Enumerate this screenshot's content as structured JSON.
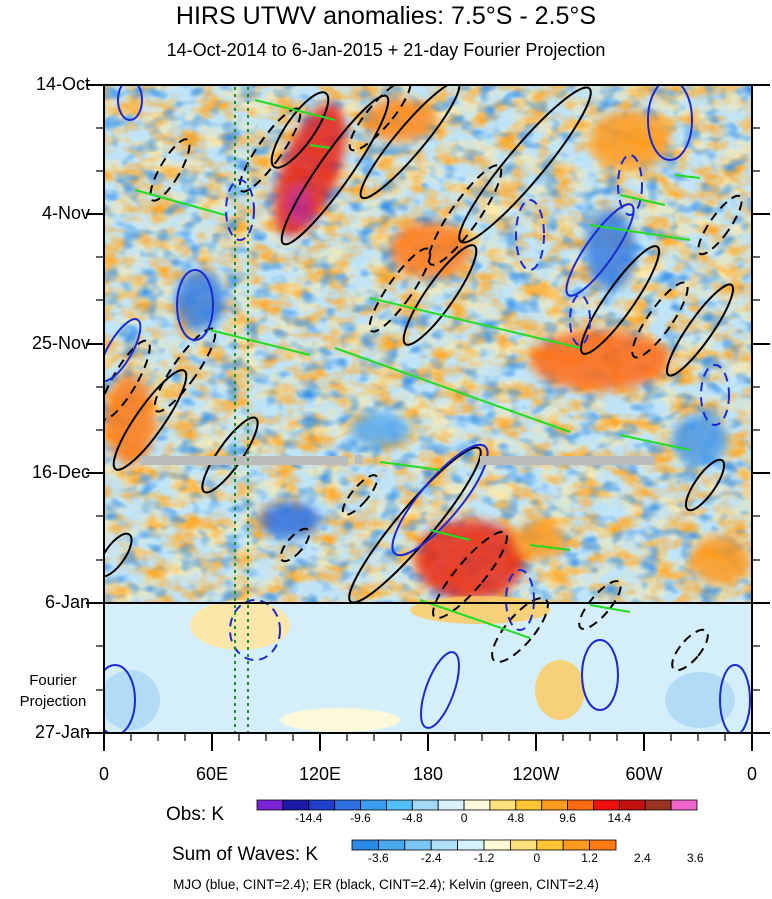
{
  "chart_data": {
    "type": "heatmap",
    "title": "HIRS UTWV anomalies: 7.5°S - 2.5°S",
    "subtitle": "14-Oct-2014 to 6-Jan-2015 + 21-day Fourier Projection",
    "y_ticks": [
      "14-Oct",
      "4-Nov",
      "25-Nov",
      "16-Dec",
      "6-Jan",
      "27-Jan"
    ],
    "x_ticks": [
      "0",
      "60E",
      "120E",
      "180",
      "120W",
      "60W",
      "0"
    ],
    "projection_label": "Fourier\nProjection",
    "obs_colorbar": {
      "label": "Obs: K",
      "ticks": [
        "-14.4",
        "-9.6",
        "-4.8",
        "0",
        "4.8",
        "9.6",
        "14.4"
      ],
      "colors": [
        "#7a23d6",
        "#1a1aa8",
        "#1f3fcc",
        "#2f6fe0",
        "#3b9df0",
        "#55c0f5",
        "#a4d8f7",
        "#d9f1fb",
        "#fffadd",
        "#ffe07a",
        "#ffc433",
        "#ff9a1e",
        "#ff6a10",
        "#f01010",
        "#c01010",
        "#993322",
        "#ee66cc"
      ]
    },
    "waves_colorbar": {
      "label": "Sum of Waves: K",
      "ticks": [
        "-3.6",
        "-2.4",
        "-1.2",
        "0",
        "1.2",
        "2.4",
        "3.6"
      ],
      "colors": [
        "#2a8ae6",
        "#4aa8ee",
        "#7cc6f4",
        "#aee0f8",
        "#d4f1fb",
        "#fffad6",
        "#ffe07a",
        "#ffc433",
        "#ff9a1e",
        "#ff7a10"
      ]
    },
    "footnote": "MJO (blue, CINT=2.4); ER (black, CINT=2.4); Kelvin (green, CINT=2.4)",
    "contour_colors": {
      "mjo": "#1a2ad0",
      "er": "#000000",
      "kelvin": "#22dd22"
    },
    "grid": false
  }
}
